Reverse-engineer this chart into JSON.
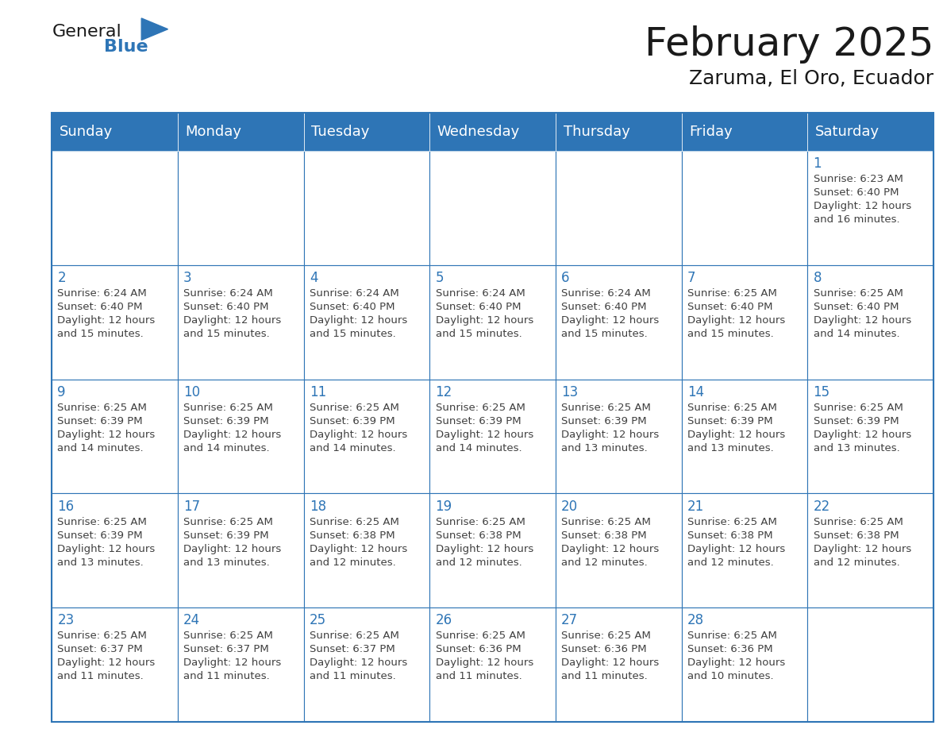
{
  "title": "February 2025",
  "subtitle": "Zaruma, El Oro, Ecuador",
  "header_bg": "#2E75B6",
  "header_text": "#FFFFFF",
  "cell_bg": "#FFFFFF",
  "border_color": "#2E75B6",
  "day_number_color": "#2E75B6",
  "cell_text_color": "#404040",
  "days_of_week": [
    "Sunday",
    "Monday",
    "Tuesday",
    "Wednesday",
    "Thursday",
    "Friday",
    "Saturday"
  ],
  "weeks": [
    [
      {
        "day": null,
        "info": null
      },
      {
        "day": null,
        "info": null
      },
      {
        "day": null,
        "info": null
      },
      {
        "day": null,
        "info": null
      },
      {
        "day": null,
        "info": null
      },
      {
        "day": null,
        "info": null
      },
      {
        "day": 1,
        "info": "Sunrise: 6:23 AM\nSunset: 6:40 PM\nDaylight: 12 hours\nand 16 minutes."
      }
    ],
    [
      {
        "day": 2,
        "info": "Sunrise: 6:24 AM\nSunset: 6:40 PM\nDaylight: 12 hours\nand 15 minutes."
      },
      {
        "day": 3,
        "info": "Sunrise: 6:24 AM\nSunset: 6:40 PM\nDaylight: 12 hours\nand 15 minutes."
      },
      {
        "day": 4,
        "info": "Sunrise: 6:24 AM\nSunset: 6:40 PM\nDaylight: 12 hours\nand 15 minutes."
      },
      {
        "day": 5,
        "info": "Sunrise: 6:24 AM\nSunset: 6:40 PM\nDaylight: 12 hours\nand 15 minutes."
      },
      {
        "day": 6,
        "info": "Sunrise: 6:24 AM\nSunset: 6:40 PM\nDaylight: 12 hours\nand 15 minutes."
      },
      {
        "day": 7,
        "info": "Sunrise: 6:25 AM\nSunset: 6:40 PM\nDaylight: 12 hours\nand 15 minutes."
      },
      {
        "day": 8,
        "info": "Sunrise: 6:25 AM\nSunset: 6:40 PM\nDaylight: 12 hours\nand 14 minutes."
      }
    ],
    [
      {
        "day": 9,
        "info": "Sunrise: 6:25 AM\nSunset: 6:39 PM\nDaylight: 12 hours\nand 14 minutes."
      },
      {
        "day": 10,
        "info": "Sunrise: 6:25 AM\nSunset: 6:39 PM\nDaylight: 12 hours\nand 14 minutes."
      },
      {
        "day": 11,
        "info": "Sunrise: 6:25 AM\nSunset: 6:39 PM\nDaylight: 12 hours\nand 14 minutes."
      },
      {
        "day": 12,
        "info": "Sunrise: 6:25 AM\nSunset: 6:39 PM\nDaylight: 12 hours\nand 14 minutes."
      },
      {
        "day": 13,
        "info": "Sunrise: 6:25 AM\nSunset: 6:39 PM\nDaylight: 12 hours\nand 13 minutes."
      },
      {
        "day": 14,
        "info": "Sunrise: 6:25 AM\nSunset: 6:39 PM\nDaylight: 12 hours\nand 13 minutes."
      },
      {
        "day": 15,
        "info": "Sunrise: 6:25 AM\nSunset: 6:39 PM\nDaylight: 12 hours\nand 13 minutes."
      }
    ],
    [
      {
        "day": 16,
        "info": "Sunrise: 6:25 AM\nSunset: 6:39 PM\nDaylight: 12 hours\nand 13 minutes."
      },
      {
        "day": 17,
        "info": "Sunrise: 6:25 AM\nSunset: 6:39 PM\nDaylight: 12 hours\nand 13 minutes."
      },
      {
        "day": 18,
        "info": "Sunrise: 6:25 AM\nSunset: 6:38 PM\nDaylight: 12 hours\nand 12 minutes."
      },
      {
        "day": 19,
        "info": "Sunrise: 6:25 AM\nSunset: 6:38 PM\nDaylight: 12 hours\nand 12 minutes."
      },
      {
        "day": 20,
        "info": "Sunrise: 6:25 AM\nSunset: 6:38 PM\nDaylight: 12 hours\nand 12 minutes."
      },
      {
        "day": 21,
        "info": "Sunrise: 6:25 AM\nSunset: 6:38 PM\nDaylight: 12 hours\nand 12 minutes."
      },
      {
        "day": 22,
        "info": "Sunrise: 6:25 AM\nSunset: 6:38 PM\nDaylight: 12 hours\nand 12 minutes."
      }
    ],
    [
      {
        "day": 23,
        "info": "Sunrise: 6:25 AM\nSunset: 6:37 PM\nDaylight: 12 hours\nand 11 minutes."
      },
      {
        "day": 24,
        "info": "Sunrise: 6:25 AM\nSunset: 6:37 PM\nDaylight: 12 hours\nand 11 minutes."
      },
      {
        "day": 25,
        "info": "Sunrise: 6:25 AM\nSunset: 6:37 PM\nDaylight: 12 hours\nand 11 minutes."
      },
      {
        "day": 26,
        "info": "Sunrise: 6:25 AM\nSunset: 6:36 PM\nDaylight: 12 hours\nand 11 minutes."
      },
      {
        "day": 27,
        "info": "Sunrise: 6:25 AM\nSunset: 6:36 PM\nDaylight: 12 hours\nand 11 minutes."
      },
      {
        "day": 28,
        "info": "Sunrise: 6:25 AM\nSunset: 6:36 PM\nDaylight: 12 hours\nand 10 minutes."
      },
      {
        "day": null,
        "info": null
      }
    ]
  ],
  "logo_text_general": "General",
  "logo_text_blue": "Blue",
  "logo_triangle_color": "#2E75B6",
  "title_fontsize": 36,
  "subtitle_fontsize": 18,
  "header_fontsize": 13,
  "day_num_fontsize": 12,
  "cell_text_fontsize": 9.5
}
